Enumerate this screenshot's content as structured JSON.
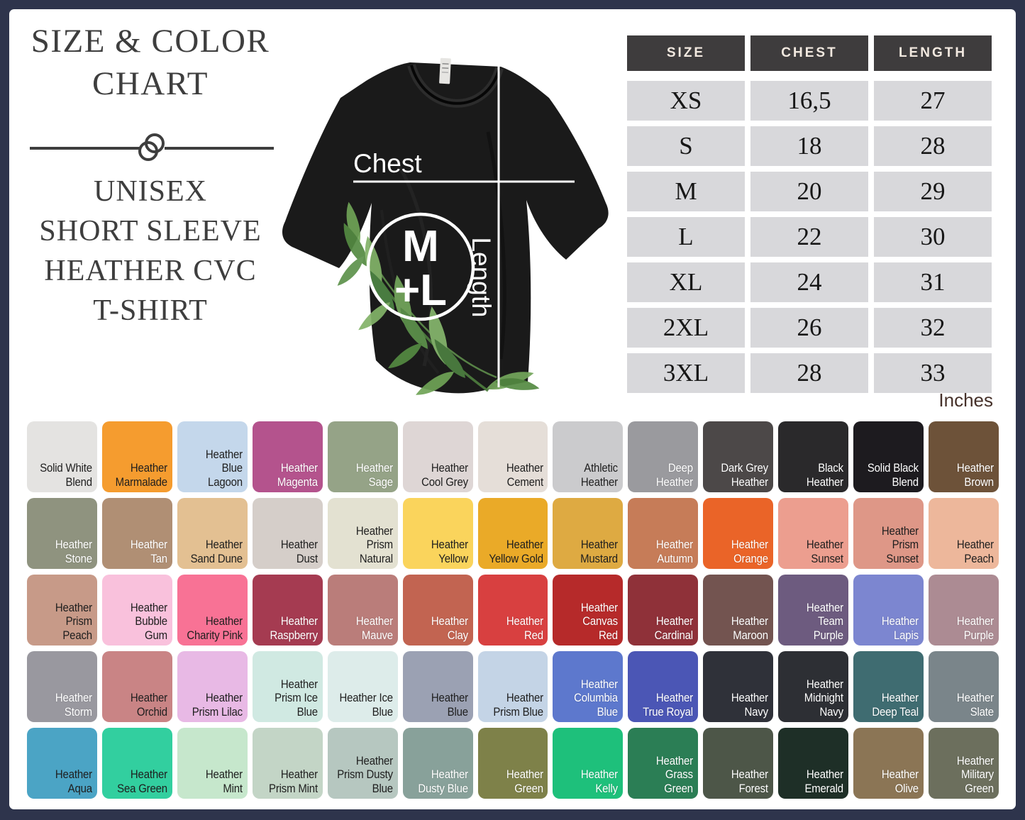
{
  "header": {
    "title_line1": "SIZE & COLOR",
    "title_line2": "CHART",
    "subtitle_lines": [
      "UNISEX",
      "SHORT SLEEVE",
      "HEATHER CVC",
      "T-SHIRT"
    ]
  },
  "shirt": {
    "chest_label": "Chest",
    "length_label": "Length",
    "logo_line1": "M",
    "logo_line2": "+L"
  },
  "size_table": {
    "headers": [
      "SIZE",
      "CHEST",
      "LENGTH"
    ],
    "rows": [
      [
        "XS",
        "16,5",
        "27"
      ],
      [
        "S",
        "18",
        "28"
      ],
      [
        "M",
        "20",
        "29"
      ],
      [
        "L",
        "22",
        "30"
      ],
      [
        "XL",
        "24",
        "31"
      ],
      [
        "2XL",
        "26",
        "32"
      ],
      [
        "3XL",
        "28",
        "33"
      ]
    ],
    "units_label": "Inches"
  },
  "chart_data": {
    "type": "table",
    "title": "Size & Color Chart — Unisex Short Sleeve Heather CVC T-Shirt",
    "columns": [
      "SIZE",
      "CHEST",
      "LENGTH"
    ],
    "rows": [
      [
        "XS",
        16.5,
        27
      ],
      [
        "S",
        18,
        28
      ],
      [
        "M",
        20,
        29
      ],
      [
        "L",
        22,
        30
      ],
      [
        "XL",
        24,
        31
      ],
      [
        "2XL",
        26,
        32
      ],
      [
        "3XL",
        28,
        33
      ]
    ],
    "units": "Inches"
  },
  "colors": {
    "accent_border": "#2e344c",
    "rows": [
      [
        {
          "name": "Solid White Blend",
          "hex": "#e4e3e1",
          "text": "dark"
        },
        {
          "name": "Heather Marmalade",
          "hex": "#f59c2f",
          "text": "dark"
        },
        {
          "name": "Heather Blue Lagoon",
          "hex": "#c4d7eb",
          "text": "dark"
        },
        {
          "name": "Heather Magenta",
          "hex": "#b4538d",
          "text": "light"
        },
        {
          "name": "Heather Sage",
          "hex": "#95a387",
          "text": "light"
        },
        {
          "name": "Heather Cool Grey",
          "hex": "#ded6d5",
          "text": "dark"
        },
        {
          "name": "Heather Cement",
          "hex": "#e5ded8",
          "text": "dark"
        },
        {
          "name": "Athletic Heather",
          "hex": "#cbcbcd",
          "text": "dark"
        },
        {
          "name": "Deep Heather",
          "hex": "#9a9a9e",
          "text": "light"
        },
        {
          "name": "Dark Grey Heather",
          "hex": "#4c4848",
          "text": "light"
        },
        {
          "name": "Black Heather",
          "hex": "#2a292b",
          "text": "light"
        },
        {
          "name": "Solid Black Blend",
          "hex": "#1d1b1f",
          "text": "light"
        },
        {
          "name": "Heather Brown",
          "hex": "#6d5239",
          "text": "light"
        }
      ],
      [
        {
          "name": "Heather Stone",
          "hex": "#8f937f",
          "text": "light"
        },
        {
          "name": "Heather Tan",
          "hex": "#b08f74",
          "text": "light"
        },
        {
          "name": "Heather Sand Dune",
          "hex": "#e3c092",
          "text": "dark"
        },
        {
          "name": "Heather Dust",
          "hex": "#d5cec9",
          "text": "dark"
        },
        {
          "name": "Heather Prism Natural",
          "hex": "#e3e1d1",
          "text": "dark"
        },
        {
          "name": "Heather Yellow",
          "hex": "#fad45c",
          "text": "dark"
        },
        {
          "name": "Heather Yellow Gold",
          "hex": "#eaaa28",
          "text": "dark"
        },
        {
          "name": "Heather Mustard",
          "hex": "#deaa42",
          "text": "dark"
        },
        {
          "name": "Heather Autumn",
          "hex": "#c67c58",
          "text": "light"
        },
        {
          "name": "Heather Orange",
          "hex": "#ea6428",
          "text": "light"
        },
        {
          "name": "Heather Sunset",
          "hex": "#ec9e8f",
          "text": "dark"
        },
        {
          "name": "Heather Prism Sunset",
          "hex": "#de9787",
          "text": "dark"
        },
        {
          "name": "Heather Peach",
          "hex": "#edb79b",
          "text": "dark"
        }
      ],
      [
        {
          "name": "Heather Prism Peach",
          "hex": "#c79a88",
          "text": "dark"
        },
        {
          "name": "Heather Bubble Gum",
          "hex": "#f9c1dc",
          "text": "dark"
        },
        {
          "name": "Heather Charity Pink",
          "hex": "#f87295",
          "text": "dark"
        },
        {
          "name": "Heather Raspberry",
          "hex": "#a53b51",
          "text": "light"
        },
        {
          "name": "Heather Mauve",
          "hex": "#ba7d7a",
          "text": "light"
        },
        {
          "name": "Heather Clay",
          "hex": "#c26451",
          "text": "light"
        },
        {
          "name": "Heather Red",
          "hex": "#d84040",
          "text": "light"
        },
        {
          "name": "Heather Canvas Red",
          "hex": "#b62a2a",
          "text": "light"
        },
        {
          "name": "Heather Cardinal",
          "hex": "#8f3139",
          "text": "light"
        },
        {
          "name": "Heather Maroon",
          "hex": "#735450",
          "text": "light"
        },
        {
          "name": "Heather Team Purple",
          "hex": "#6d5b7f",
          "text": "light"
        },
        {
          "name": "Heather Lapis",
          "hex": "#7c86d0",
          "text": "light"
        },
        {
          "name": "Heather Purple",
          "hex": "#ac8b93",
          "text": "light"
        }
      ],
      [
        {
          "name": "Heather Storm",
          "hex": "#99989f",
          "text": "light"
        },
        {
          "name": "Heather Orchid",
          "hex": "#c98485",
          "text": "dark"
        },
        {
          "name": "Heather Prism Lilac",
          "hex": "#e8b9e5",
          "text": "dark"
        },
        {
          "name": "Heather Prism Ice Blue",
          "hex": "#d0e9e2",
          "text": "dark"
        },
        {
          "name": "Heather Ice Blue",
          "hex": "#ddecea",
          "text": "dark"
        },
        {
          "name": "Heather Blue",
          "hex": "#9ba1b3",
          "text": "dark"
        },
        {
          "name": "Heather Prism Blue",
          "hex": "#c4d4e6",
          "text": "dark"
        },
        {
          "name": "Heather Columbia Blue",
          "hex": "#5d78cd",
          "text": "light"
        },
        {
          "name": "Heather True Royal",
          "hex": "#4b56b5",
          "text": "light"
        },
        {
          "name": "Heather Navy",
          "hex": "#2f3139",
          "text": "light"
        },
        {
          "name": "Heather Midnight Navy",
          "hex": "#2d2f34",
          "text": "light"
        },
        {
          "name": "Heather Deep Teal",
          "hex": "#3f6c71",
          "text": "light"
        },
        {
          "name": "Heather Slate",
          "hex": "#7a858a",
          "text": "light"
        }
      ],
      [
        {
          "name": "Heather Aqua",
          "hex": "#4ba4c5",
          "text": "dark"
        },
        {
          "name": "Heather Sea Green",
          "hex": "#32cf9f",
          "text": "dark"
        },
        {
          "name": "Heather Mint",
          "hex": "#c6e7cc",
          "text": "dark"
        },
        {
          "name": "Heather Prism Mint",
          "hex": "#c3d5c6",
          "text": "dark"
        },
        {
          "name": "Heather Prism Dusty Blue",
          "hex": "#b6c7c0",
          "text": "dark"
        },
        {
          "name": "Heather Dusty Blue",
          "hex": "#88a19a",
          "text": "light"
        },
        {
          "name": "Heather Green",
          "hex": "#7e8149",
          "text": "light"
        },
        {
          "name": "Heather Kelly",
          "hex": "#1ec07b",
          "text": "light"
        },
        {
          "name": "Heather Grass Green",
          "hex": "#2b7e55",
          "text": "light"
        },
        {
          "name": "Heather Forest",
          "hex": "#4d5648",
          "text": "light"
        },
        {
          "name": "Heather Emerald",
          "hex": "#1e2f27",
          "text": "light"
        },
        {
          "name": "Heather Olive",
          "hex": "#8b7555",
          "text": "light"
        },
        {
          "name": "Heather Military Green",
          "hex": "#6c6f5d",
          "text": "light"
        }
      ]
    ]
  }
}
